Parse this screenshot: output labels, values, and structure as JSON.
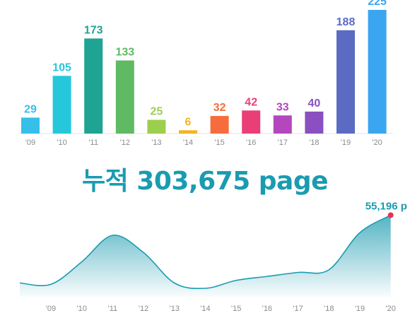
{
  "chart_data": [
    {
      "type": "bar",
      "categories": [
        "'09",
        "'10",
        "'11",
        "'12",
        "'13",
        "'14",
        "'15",
        "'16",
        "'17",
        "'18",
        "'19",
        "'20"
      ],
      "values": [
        29,
        105,
        173,
        133,
        25,
        6,
        32,
        42,
        33,
        40,
        188,
        225
      ],
      "colors": [
        "#35bfe9",
        "#25c8db",
        "#1fa392",
        "#5fba63",
        "#9ccf4e",
        "#f5b323",
        "#f76c3c",
        "#ea3f76",
        "#b446be",
        "#8a4fc0",
        "#5b6bc3",
        "#3aa6f2"
      ],
      "ylim": [
        0,
        225
      ],
      "grid": false
    },
    {
      "type": "area",
      "categories": [
        "'09",
        "'10",
        "'11",
        "'12",
        "'13",
        "'14",
        "'15",
        "'16",
        "'17",
        "'18",
        "'19",
        "'20"
      ],
      "values": [
        3000,
        20000,
        40000,
        27000,
        4000,
        0,
        6000,
        9000,
        12000,
        14000,
        42000,
        55196
      ],
      "end_label": "55,196 p",
      "color": "#1a9bb0",
      "marker_color": "#e8305c",
      "grid": false
    }
  ],
  "headline": {
    "prefix": "누적",
    "value": "303,675",
    "unit": "page"
  }
}
